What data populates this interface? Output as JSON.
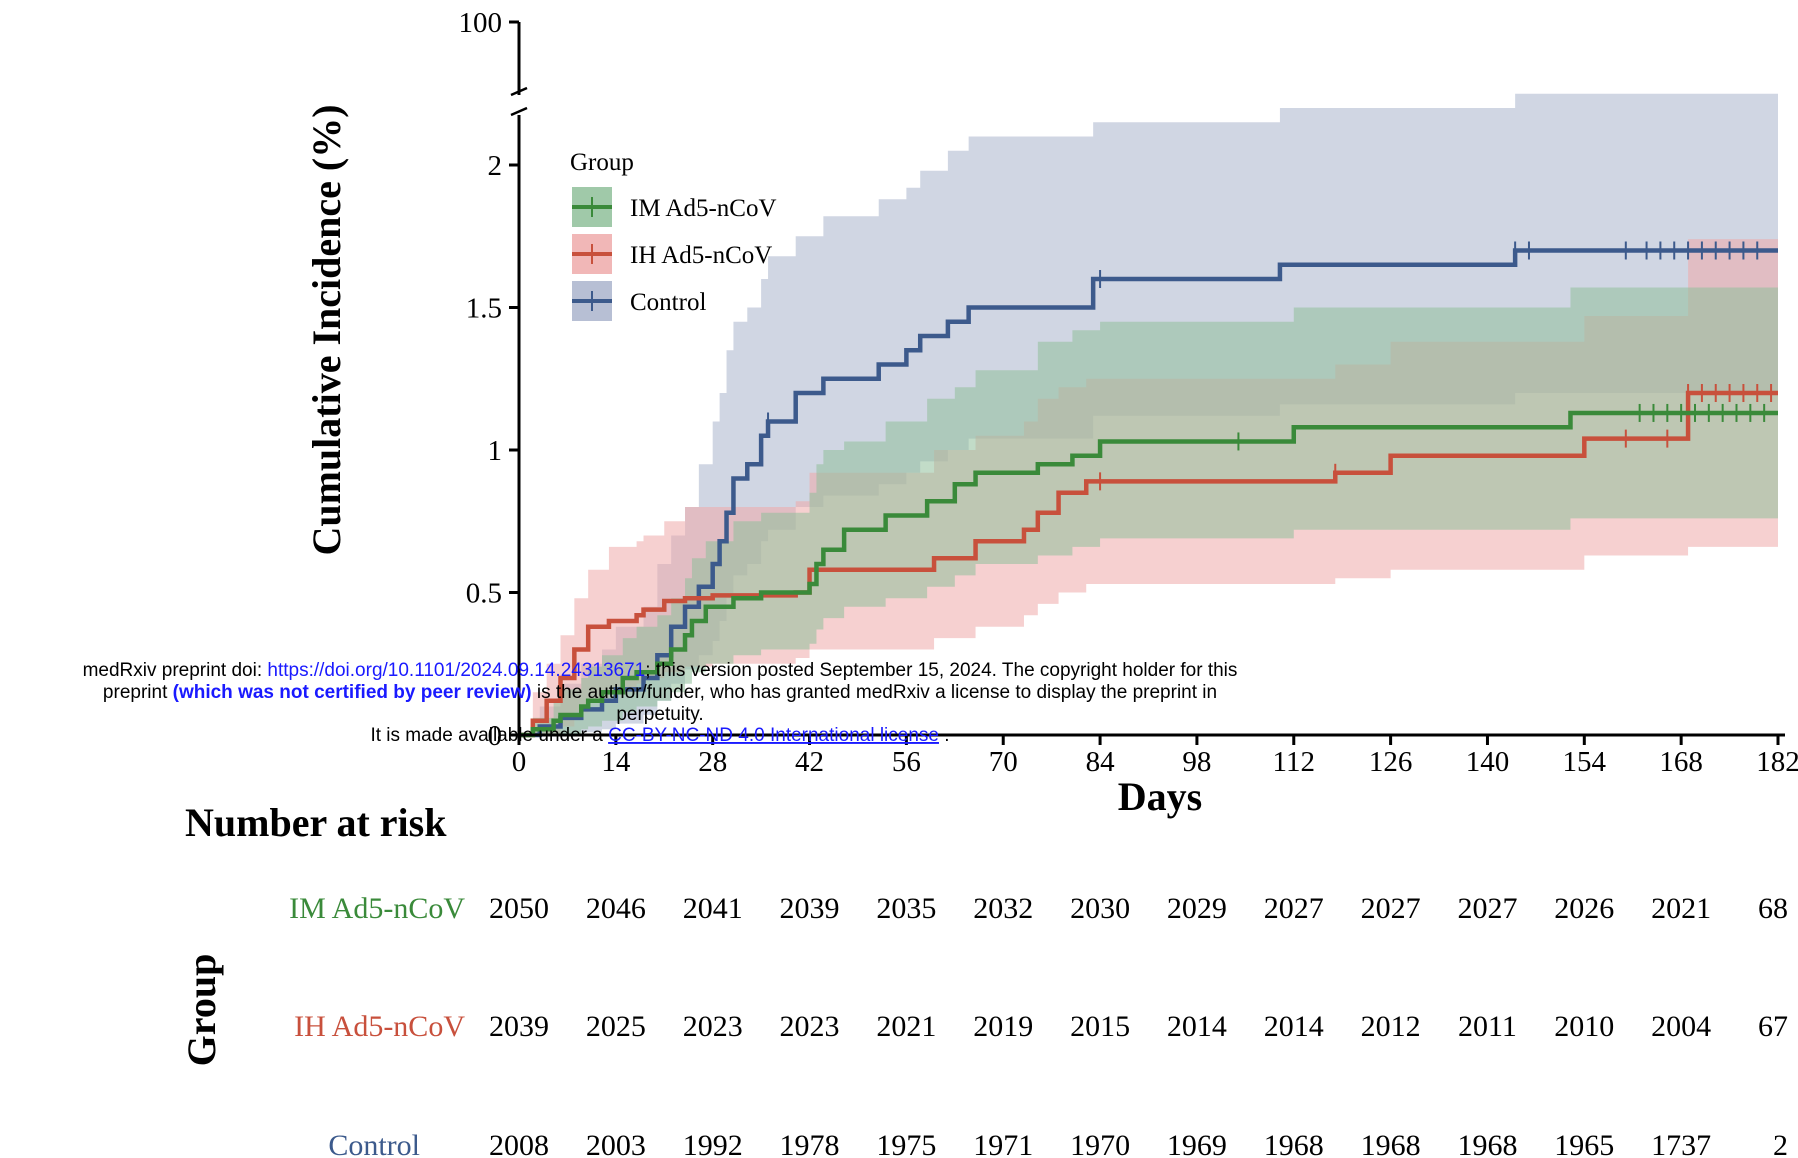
{
  "chart_data": {
    "type": "line",
    "subtype": "kaplan-meier cumulative incidence with confidence bands",
    "xlabel": "Days",
    "ylabel": "Cumulative Incidence (%)",
    "x_ticks": [
      "0",
      "14",
      "28",
      "42",
      "56",
      "70",
      "84",
      "98",
      "112",
      "126",
      "140",
      "154",
      "168",
      "182"
    ],
    "y_ticks": [
      "0",
      "0.5",
      "1",
      "1.5",
      "2",
      "100"
    ],
    "xlim": [
      0,
      182
    ],
    "ylim": [
      0,
      2.3
    ],
    "y_axis_break": true,
    "legend": {
      "title": "Group",
      "placement": "top-left",
      "entries": [
        "IM Ad5-nCoV",
        "IH Ad5-nCoV",
        "Control"
      ]
    },
    "series": [
      {
        "name": "IM Ad5-nCoV",
        "color": "#3a8a3a",
        "band_color": "#8fbf9a",
        "x": [
          0,
          2,
          5,
          6,
          9,
          10,
          12,
          15,
          17,
          20,
          22,
          24,
          25,
          27,
          31,
          35,
          42,
          43,
          44,
          47,
          53,
          59,
          63,
          66,
          75,
          80,
          84,
          112,
          152,
          168,
          182
        ],
        "y": [
          0,
          0.02,
          0.05,
          0.07,
          0.1,
          0.12,
          0.15,
          0.2,
          0.22,
          0.25,
          0.3,
          0.35,
          0.4,
          0.45,
          0.48,
          0.5,
          0.53,
          0.6,
          0.65,
          0.72,
          0.77,
          0.82,
          0.88,
          0.92,
          0.95,
          0.98,
          1.03,
          1.08,
          1.13,
          1.13,
          1.13
        ],
        "upper": [
          0,
          0.06,
          0.12,
          0.16,
          0.2,
          0.24,
          0.28,
          0.34,
          0.38,
          0.42,
          0.48,
          0.55,
          0.62,
          0.68,
          0.75,
          0.78,
          0.85,
          0.95,
          1.0,
          1.03,
          1.1,
          1.18,
          1.22,
          1.28,
          1.38,
          1.42,
          1.45,
          1.5,
          1.57,
          1.57,
          1.57
        ],
        "lower": [
          0,
          0,
          0,
          0,
          0.02,
          0.03,
          0.05,
          0.08,
          0.1,
          0.12,
          0.15,
          0.18,
          0.22,
          0.25,
          0.28,
          0.3,
          0.32,
          0.37,
          0.41,
          0.45,
          0.48,
          0.52,
          0.56,
          0.6,
          0.63,
          0.66,
          0.69,
          0.72,
          0.76,
          0.76,
          0.76
        ]
      },
      {
        "name": "IH Ad5-nCoV",
        "color": "#c8503c",
        "band_color": "#eeaaaa",
        "x": [
          0,
          2,
          4,
          6,
          8,
          10,
          13,
          17,
          18,
          21,
          24,
          28,
          33,
          40,
          42,
          60,
          66,
          73,
          75,
          78,
          82,
          118,
          126,
          154,
          169,
          182
        ],
        "y": [
          0,
          0.05,
          0.12,
          0.2,
          0.3,
          0.38,
          0.4,
          0.42,
          0.44,
          0.47,
          0.48,
          0.49,
          0.49,
          0.5,
          0.58,
          0.62,
          0.68,
          0.72,
          0.78,
          0.85,
          0.89,
          0.92,
          0.98,
          1.04,
          1.2,
          1.2
        ],
        "upper": [
          0,
          0.15,
          0.25,
          0.35,
          0.48,
          0.58,
          0.66,
          0.68,
          0.7,
          0.75,
          0.8,
          0.8,
          0.8,
          0.82,
          0.92,
          1.0,
          1.05,
          1.1,
          1.18,
          1.22,
          1.25,
          1.3,
          1.38,
          1.47,
          1.74,
          1.74
        ],
        "lower": [
          0,
          0,
          0,
          0.03,
          0.08,
          0.12,
          0.15,
          0.18,
          0.2,
          0.22,
          0.24,
          0.25,
          0.25,
          0.27,
          0.3,
          0.34,
          0.38,
          0.42,
          0.46,
          0.5,
          0.53,
          0.55,
          0.58,
          0.63,
          0.66,
          0.66
        ]
      },
      {
        "name": "Control",
        "color": "#3c5a8c",
        "band_color": "#aab4cc",
        "x": [
          0,
          3,
          6,
          9,
          12,
          14,
          18,
          20,
          22,
          24,
          26,
          28,
          29,
          30,
          31,
          33,
          35,
          36,
          40,
          44,
          52,
          56,
          58,
          62,
          65,
          83,
          110,
          144,
          182
        ],
        "y": [
          0,
          0.03,
          0.06,
          0.09,
          0.12,
          0.16,
          0.2,
          0.28,
          0.38,
          0.45,
          0.52,
          0.6,
          0.68,
          0.78,
          0.9,
          0.95,
          1.05,
          1.1,
          1.2,
          1.25,
          1.3,
          1.35,
          1.4,
          1.45,
          1.5,
          1.6,
          1.65,
          1.7,
          1.7
        ],
        "upper": [
          0,
          0.1,
          0.18,
          0.25,
          0.3,
          0.38,
          0.45,
          0.6,
          0.7,
          0.8,
          0.95,
          1.1,
          1.2,
          1.35,
          1.45,
          1.5,
          1.6,
          1.68,
          1.75,
          1.82,
          1.88,
          1.92,
          1.98,
          2.05,
          2.1,
          2.15,
          2.2,
          2.25,
          2.25
        ],
        "lower": [
          0,
          0,
          0,
          0.01,
          0.02,
          0.04,
          0.07,
          0.12,
          0.18,
          0.23,
          0.28,
          0.33,
          0.4,
          0.48,
          0.56,
          0.6,
          0.68,
          0.72,
          0.8,
          0.84,
          0.88,
          0.92,
          0.96,
          1.0,
          1.04,
          1.12,
          1.16,
          1.2,
          1.2
        ]
      }
    ],
    "risk_table": {
      "title": "Number at risk",
      "axis_title": "Group",
      "rows": [
        {
          "group": "IM Ad5-nCoV",
          "color": "#3a8a3a",
          "values": [
            "2050",
            "2046",
            "2041",
            "2039",
            "2035",
            "2032",
            "2030",
            "2029",
            "2027",
            "2027",
            "2027",
            "2026",
            "2021",
            "68"
          ]
        },
        {
          "group": "IH Ad5-nCoV",
          "color": "#c8503c",
          "values": [
            "2039",
            "2025",
            "2023",
            "2023",
            "2021",
            "2019",
            "2015",
            "2014",
            "2014",
            "2012",
            "2011",
            "2010",
            "2004",
            "67"
          ]
        },
        {
          "group": "Control",
          "color": "#3c5a8c",
          "values": [
            "2008",
            "2003",
            "1992",
            "1978",
            "1975",
            "1971",
            "1970",
            "1969",
            "1968",
            "1968",
            "1968",
            "1965",
            "1737",
            "2"
          ]
        }
      ]
    }
  },
  "watermark": {
    "line1_prefix": "medRxiv preprint doi: ",
    "line1_link": "https://doi.org/10.1101/2024.09.14.24313671",
    "line1_suffix": "; this version posted September 15, 2024. The copyright holder for this",
    "line2_prefix": "preprint ",
    "line2_bold": "(which was not certified by peer review)",
    "line2_suffix": " is the author/funder, who has granted medRxiv a license to display the preprint in",
    "line3": "perpetuity.",
    "line4_prefix": "It is made available under a ",
    "line4_link": "CC-BY-NC-ND 4.0 International license",
    "line4_suffix": " ."
  }
}
